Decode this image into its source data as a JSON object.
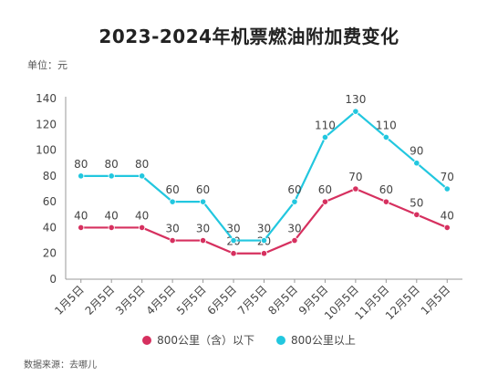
{
  "chart_data": {
    "type": "line",
    "title": "2023-2024年机票燃油附加费变化",
    "unit_label": "单位：元",
    "source": "数据来源：去哪儿",
    "categories": [
      "1月5日",
      "2月5日",
      "3月5日",
      "4月5日",
      "5月5日",
      "6月5日",
      "7月5日",
      "8月5日",
      "9月5日",
      "10月5日",
      "11月5日",
      "12月5日",
      "1月5日"
    ],
    "ylim": [
      0,
      140
    ],
    "yticks": [
      0,
      20,
      40,
      60,
      80,
      100,
      120,
      140
    ],
    "grid": false,
    "legend_position": "bottom",
    "series": [
      {
        "name": "800公里（含）以下",
        "color": "#d6305f",
        "values": [
          40,
          40,
          40,
          30,
          30,
          20,
          20,
          30,
          60,
          70,
          60,
          50,
          40
        ]
      },
      {
        "name": "800公里以上",
        "color": "#22c7df",
        "values": [
          80,
          80,
          80,
          60,
          60,
          30,
          30,
          60,
          110,
          130,
          110,
          90,
          70
        ]
      }
    ]
  }
}
